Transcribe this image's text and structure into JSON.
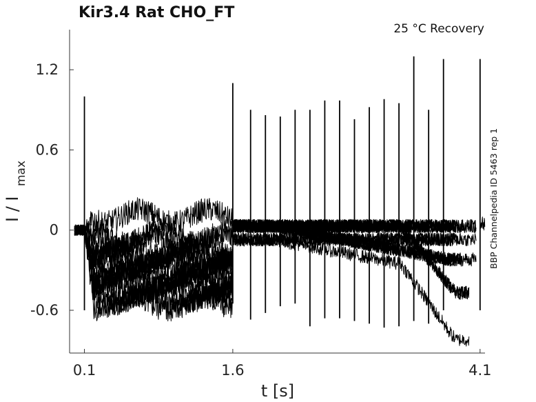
{
  "chart_data": {
    "type": "line",
    "title": "Kir3.4  Rat  CHO_FT",
    "annotation": "25 °C  Recovery",
    "side_label": "BBP Channelpedia ID 5463 rep 1",
    "xlabel": "t [s]",
    "ylabel_main": "I / I",
    "ylabel_sub": "max",
    "xlim": [
      -0.05,
      4.15
    ],
    "ylim": [
      -0.92,
      1.5
    ],
    "x_ticks": [
      0.1,
      1.6,
      4.1
    ],
    "x_tick_labels": [
      "0.1",
      "1.6",
      "4.1"
    ],
    "y_ticks": [
      1.2,
      0.6,
      0,
      -0.6
    ],
    "y_tick_labels": [
      "1.2",
      "0.6",
      "0",
      "-0.6"
    ],
    "grid": false,
    "legend": "none",
    "line_color": "#000000",
    "trace_count": 16,
    "spikes": [
      {
        "t": 0.1,
        "top": 1.0,
        "bottom": -0.6
      },
      {
        "t": 1.6,
        "top": 1.1,
        "bottom": -0.55
      },
      {
        "t": 1.78,
        "top": 0.9,
        "bottom": -0.67
      },
      {
        "t": 1.93,
        "top": 0.86,
        "bottom": -0.62
      },
      {
        "t": 2.08,
        "top": 0.85,
        "bottom": -0.57
      },
      {
        "t": 2.23,
        "top": 0.9,
        "bottom": -0.55
      },
      {
        "t": 2.38,
        "top": 0.9,
        "bottom": -0.72
      },
      {
        "t": 2.53,
        "top": 0.97,
        "bottom": -0.66
      },
      {
        "t": 2.68,
        "top": 0.97,
        "bottom": -0.66
      },
      {
        "t": 2.83,
        "top": 0.83,
        "bottom": -0.68
      },
      {
        "t": 2.98,
        "top": 0.92,
        "bottom": -0.7
      },
      {
        "t": 3.13,
        "top": 0.98,
        "bottom": -0.73
      },
      {
        "t": 3.28,
        "top": 0.95,
        "bottom": -0.72
      },
      {
        "t": 3.43,
        "top": 1.3,
        "bottom": -0.68
      },
      {
        "t": 3.58,
        "top": 0.9,
        "bottom": -0.7
      },
      {
        "t": 3.73,
        "top": 1.28,
        "bottom": -0.6
      },
      {
        "t": 4.1,
        "top": 1.28,
        "bottom": -0.6
      }
    ]
  }
}
